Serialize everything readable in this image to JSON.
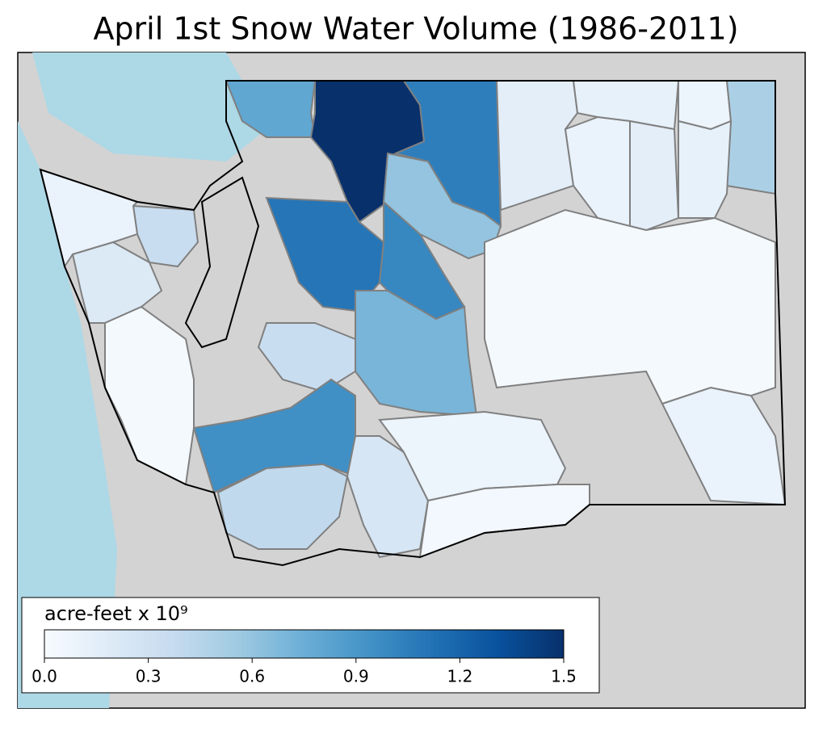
{
  "title": "April 1st Snow Water Volume (1986-2011)",
  "colorbar": {
    "label": "acre-feet x 10⁹",
    "lim": [
      0,
      1.5
    ],
    "ticks": [
      {
        "value": 0,
        "label": "0.0"
      },
      {
        "value": 0.3,
        "label": "0.3"
      },
      {
        "value": 0.6,
        "label": "0.6"
      },
      {
        "value": 0.9,
        "label": "0.9"
      },
      {
        "value": 1.2,
        "label": "1.2"
      },
      {
        "value": 1.5,
        "label": "1.5"
      }
    ],
    "colormap": [
      "#f7fbff",
      "#deebf7",
      "#c6dbef",
      "#9ecae1",
      "#6baed6",
      "#4292c6",
      "#2171b5",
      "#08519c",
      "#08306b"
    ]
  },
  "regions": [
    {
      "value": 0.8
    },
    {
      "value": 1.5
    },
    {
      "value": 1.05
    },
    {
      "value": 0.15
    },
    {
      "value": 0.12
    },
    {
      "value": 0.08
    },
    {
      "value": 0.5
    },
    {
      "value": 0.1
    },
    {
      "value": 0.15
    },
    {
      "value": 0.12
    },
    {
      "value": 0.35
    },
    {
      "value": 0.1
    },
    {
      "value": 0.2
    },
    {
      "value": 1.1
    },
    {
      "value": 1.0
    },
    {
      "value": 0.6
    },
    {
      "value": 0.7
    },
    {
      "value": 0.35
    },
    {
      "value": 0.95
    },
    {
      "value": 0.4
    },
    {
      "value": 0.25
    },
    {
      "value": 0.08
    },
    {
      "value": 0.03
    },
    {
      "value": 0.1
    },
    {
      "value": 0.02
    },
    {
      "value": 0.02
    }
  ]
}
